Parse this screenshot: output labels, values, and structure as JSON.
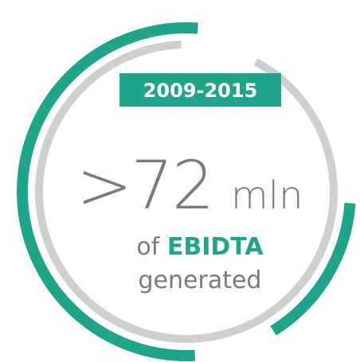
{
  "period": "2009-2015",
  "figure": ">72",
  "unit": "mln",
  "caption": {
    "prefix": "of",
    "highlight": "EBIDTA",
    "suffix": "generated"
  }
}
